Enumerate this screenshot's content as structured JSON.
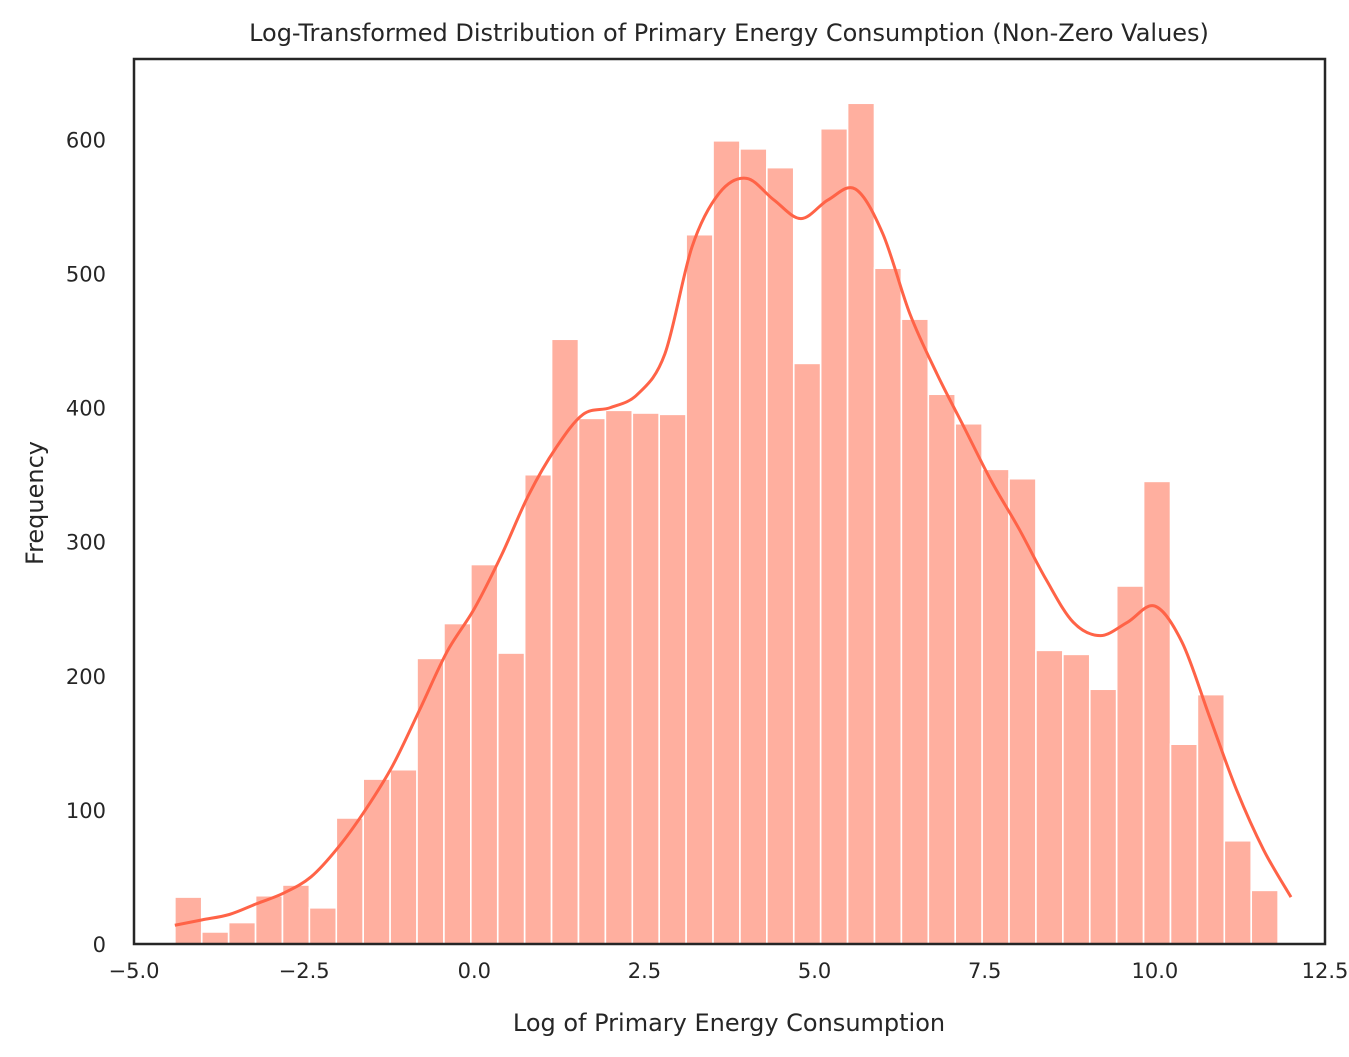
{
  "chart_data": {
    "type": "bar",
    "title": "Log-Transformed Distribution of Primary Energy Consumption (Non-Zero Values)",
    "xlabel": "Log of Primary Energy Consumption",
    "ylabel": "Frequency",
    "xlim": [
      -5.0,
      12.5
    ],
    "ylim": [
      0,
      660
    ],
    "x_ticks": [
      -5.0,
      -2.5,
      0.0,
      2.5,
      5.0,
      7.5,
      10.0,
      12.5
    ],
    "x_tick_labels": [
      "−5.0",
      "−2.5",
      "0.0",
      "2.5",
      "5.0",
      "7.5",
      "10.0",
      "12.5"
    ],
    "y_ticks": [
      0,
      100,
      200,
      300,
      400,
      500,
      600
    ],
    "y_tick_labels": [
      "0",
      "100",
      "200",
      "300",
      "400",
      "500",
      "600"
    ],
    "grid": false,
    "bins": {
      "start": -4.4,
      "width": 0.3954,
      "counts": [
        35,
        9,
        16,
        36,
        44,
        27,
        94,
        123,
        130,
        213,
        239,
        283,
        217,
        350,
        451,
        392,
        398,
        396,
        395,
        529,
        599,
        593,
        579,
        433,
        608,
        627,
        504,
        466,
        410,
        388,
        354,
        347,
        219,
        216,
        190,
        267,
        345,
        149,
        186,
        77,
        40
      ]
    },
    "kde": {
      "x": [
        -4.4,
        -4.0,
        -3.6,
        -3.2,
        -2.8,
        -2.4,
        -2.0,
        -1.6,
        -1.2,
        -0.8,
        -0.4,
        0.0,
        0.4,
        0.8,
        1.2,
        1.6,
        2.0,
        2.4,
        2.8,
        3.2,
        3.6,
        4.0,
        4.4,
        4.8,
        5.2,
        5.6,
        6.0,
        6.4,
        6.8,
        7.2,
        7.6,
        8.0,
        8.4,
        8.8,
        9.2,
        9.6,
        10.0,
        10.4,
        10.8,
        11.2,
        11.6,
        12.0
      ],
      "y": [
        14,
        18,
        22,
        30,
        38,
        50,
        72,
        100,
        133,
        175,
        218,
        250,
        290,
        335,
        370,
        395,
        400,
        410,
        440,
        520,
        560,
        571,
        555,
        541,
        555,
        563,
        530,
        470,
        425,
        385,
        345,
        310,
        272,
        240,
        230,
        240,
        252,
        225,
        170,
        115,
        70,
        35
      ]
    },
    "colors": {
      "bar": "#ffaf9f",
      "kde": "#ff6347",
      "axes": "#262626"
    }
  }
}
